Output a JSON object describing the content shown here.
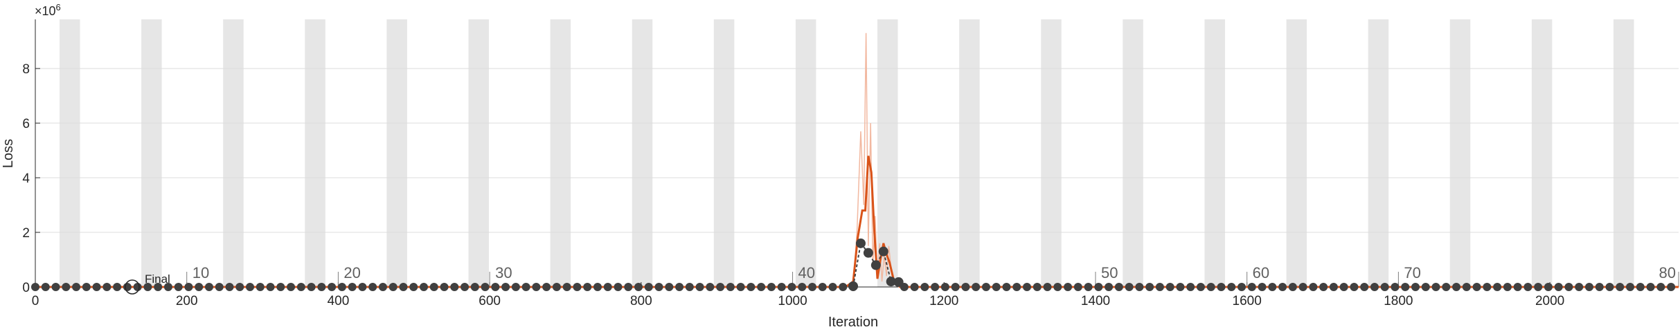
{
  "chart_data": {
    "type": "line",
    "xlabel": "Iteration",
    "ylabel": "Loss",
    "y_exponent_label": "×10",
    "y_exponent_power": "6",
    "xlim": [
      0,
      2170
    ],
    "ylim": [
      0,
      9.8
    ],
    "xticks": [
      0,
      200,
      400,
      600,
      800,
      1000,
      1200,
      1400,
      1600,
      1800,
      2000
    ],
    "yticks": [
      0,
      2,
      4,
      6,
      8
    ],
    "grid": true,
    "epoch_labels": [
      {
        "epoch": "10",
        "x": 200
      },
      {
        "epoch": "20",
        "x": 400
      },
      {
        "epoch": "30",
        "x": 600
      },
      {
        "epoch": "40",
        "x": 1000
      },
      {
        "epoch": "50",
        "x": 1400
      },
      {
        "epoch": "60",
        "x": 1600
      },
      {
        "epoch": "70",
        "x": 1800
      },
      {
        "epoch": "80",
        "x": 2170
      }
    ],
    "epoch_band_period": 54,
    "final_marker": {
      "label": "Final",
      "x": 128,
      "y": 0
    },
    "series": [
      {
        "role": "raw-loss",
        "color": "#f2b8a0",
        "x": [
          0,
          1070,
          1080,
          1085,
          1090,
          1094,
          1097,
          1100,
          1103,
          1106,
          1109,
          1112,
          1115,
          1118,
          1121,
          1124,
          1127,
          1132,
          1140,
          2170
        ],
        "y": [
          0,
          0,
          0.1,
          2.0,
          5.7,
          3.0,
          9.3,
          1.5,
          6.0,
          0.8,
          2.6,
          0.3,
          1.6,
          0.2,
          1.2,
          0.4,
          1.5,
          0.2,
          0,
          0
        ]
      },
      {
        "role": "smoothed-loss",
        "color": "#d95319",
        "x": [
          0,
          1070,
          1080,
          1086,
          1092,
          1096,
          1100,
          1104,
          1108,
          1112,
          1116,
          1120,
          1124,
          1128,
          1134,
          1142,
          2170
        ],
        "y": [
          0,
          0,
          0.2,
          1.8,
          2.8,
          2.8,
          4.8,
          4.2,
          2.0,
          0.3,
          1.0,
          1.6,
          1.2,
          0.9,
          0.2,
          0,
          0
        ]
      },
      {
        "role": "validation-loss",
        "color": "#404040",
        "x": [
          1080,
          1090,
          1100,
          1110,
          1120,
          1130,
          1140
        ],
        "y": [
          0.03,
          1.6,
          1.25,
          0.8,
          1.3,
          0.2,
          0.18
        ]
      }
    ],
    "validation_baseline_step": 13.5
  }
}
